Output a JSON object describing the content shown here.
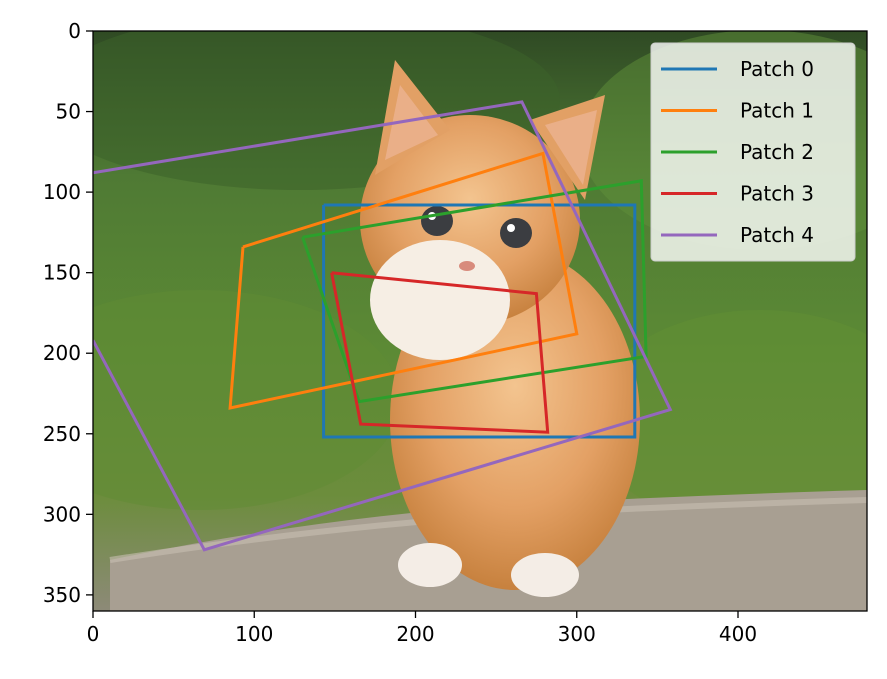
{
  "chart_data": {
    "type": "line",
    "background_image": "orange tabby kitten sitting on a stone ledge in front of green grass and foliage",
    "xlim": [
      0,
      480
    ],
    "ylim": [
      360,
      0
    ],
    "y_inverted": true,
    "x_ticks": [
      0,
      100,
      200,
      300,
      400
    ],
    "y_ticks": [
      0,
      50,
      100,
      150,
      200,
      250,
      300,
      350
    ],
    "grid": false,
    "legend_position": "top-right",
    "series": [
      {
        "name": "Patch 0",
        "color": "#1f77b4",
        "points": [
          [
            143,
            108
          ],
          [
            336,
            108
          ],
          [
            336,
            252
          ],
          [
            143,
            252
          ],
          [
            143,
            108
          ]
        ]
      },
      {
        "name": "Patch 1",
        "color": "#ff7f0e",
        "points": [
          [
            93,
            134
          ],
          [
            279,
            76
          ],
          [
            300,
            188
          ],
          [
            85,
            234
          ],
          [
            93,
            134
          ]
        ]
      },
      {
        "name": "Patch 2",
        "color": "#2ca02c",
        "points": [
          [
            130,
            128
          ],
          [
            340,
            93
          ],
          [
            343,
            202
          ],
          [
            165,
            230
          ],
          [
            130,
            128
          ]
        ]
      },
      {
        "name": "Patch 3",
        "color": "#d62728",
        "points": [
          [
            148,
            150
          ],
          [
            275,
            163
          ],
          [
            282,
            249
          ],
          [
            166,
            244
          ],
          [
            148,
            150
          ]
        ]
      },
      {
        "name": "Patch 4",
        "color": "#9467bd",
        "points": [
          [
            0,
            88
          ],
          [
            266,
            44
          ],
          [
            358,
            235
          ],
          [
            69,
            322
          ],
          [
            0,
            192
          ]
        ]
      }
    ]
  }
}
